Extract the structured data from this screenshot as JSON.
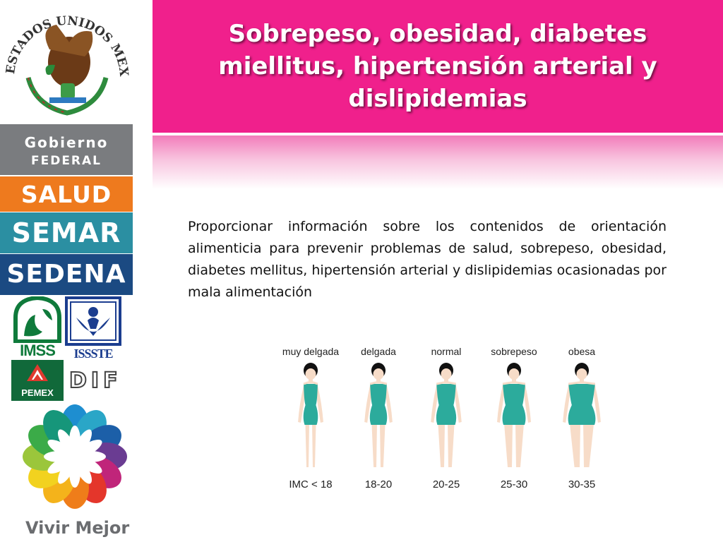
{
  "header": {
    "title": "Sobrepeso, obesidad, diabetes miellitus, hipertensión arterial y dislipidemias"
  },
  "sidebar": {
    "seal_text": "ESTADOS UNIDOS MEXICANOS",
    "gobierno_line1": "Gobierno",
    "gobierno_line2": "FEDERAL",
    "salud": "SALUD",
    "semar": "SEMAR",
    "sedena": "SEDENA",
    "imss": "IMSS",
    "issste": "ISSSTE",
    "pemex": "PEMEX",
    "dif": "DIF",
    "vivir_mejor": "Vivir Mejor"
  },
  "intro_text": "Proporcionar información sobre los contenidos de orientación alimenticia para prevenir problemas de salud, sobrepeso, obesidad, diabetes mellitus, hipertensión arterial y dislipidemias ocasionadas por mala alimentación",
  "figure": {
    "categories": [
      {
        "label": "muy delgada",
        "imc": "IMC < 18"
      },
      {
        "label": "delgada",
        "imc": "18-20"
      },
      {
        "label": "normal",
        "imc": "20-25"
      },
      {
        "label": "sobrepeso",
        "imc": "25-30"
      },
      {
        "label": "obesa",
        "imc": "30-35"
      }
    ],
    "skin_color": "#f7dcc8",
    "swimsuit_color": "#2cab9c",
    "hair_color": "#111111"
  },
  "colors": {
    "header_pink": "#f0208c",
    "gobierno_gray": "#7a7c7f",
    "salud_orange": "#ee7a1e",
    "semar_teal": "#2b8fa2",
    "sedena_blue": "#1b4a82"
  }
}
